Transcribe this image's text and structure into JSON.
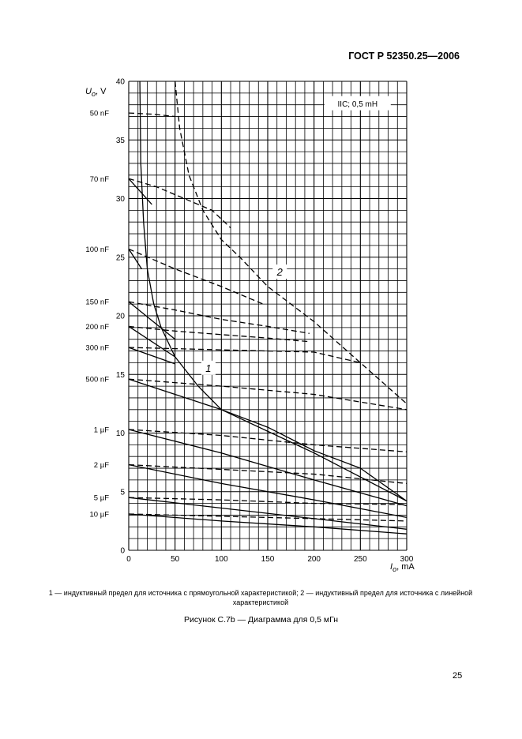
{
  "header": {
    "doc_id": "ГОСТ Р 52350.25—2006"
  },
  "chart_data": {
    "type": "line",
    "annotation": "IIC; 0,5 mH",
    "ylabel": {
      "symbol": "U",
      "sub": "o",
      "unit": ", V"
    },
    "xlabel": {
      "symbol": "I",
      "sub": "o",
      "unit": ", mA"
    },
    "xlim": [
      0,
      300
    ],
    "ylim": [
      0,
      40
    ],
    "x_ticks": [
      "0",
      "50",
      "100",
      "150",
      "200",
      "250",
      "300"
    ],
    "y_ticks": [
      "0",
      "5",
      "10",
      "15",
      "20",
      "25",
      "30",
      "35",
      "40"
    ],
    "capacitance_labels": [
      {
        "text": "50 nF",
        "value": 37.3
      },
      {
        "text": "70 nF",
        "value": 31.7
      },
      {
        "text": "100 nF",
        "value": 25.7
      },
      {
        "text": "150 nF",
        "value": 21.2
      },
      {
        "text": "200 nF",
        "value": 19.1
      },
      {
        "text": "300 nF",
        "value": 17.3
      },
      {
        "text": "500 nF",
        "value": 14.6
      },
      {
        "text": "1 µF",
        "value": 10.3
      },
      {
        "text": "2 µF",
        "value": 7.3
      },
      {
        "text": "5 µF",
        "value": 4.5
      },
      {
        "text": "10 µF",
        "value": 3.1
      }
    ],
    "curve_labels": [
      {
        "text": "1",
        "x": 86,
        "y": 15.5
      },
      {
        "text": "2",
        "x": 163,
        "y": 23.7
      }
    ],
    "series": [
      {
        "name": "1",
        "style": "solid",
        "points": [
          [
            12,
            40
          ],
          [
            13,
            33
          ],
          [
            16,
            28
          ],
          [
            20,
            24
          ],
          [
            27,
            21
          ],
          [
            35,
            19
          ],
          [
            50,
            16.5
          ],
          [
            75,
            14
          ],
          [
            100,
            12
          ],
          [
            150,
            10.5
          ],
          [
            200,
            8.5
          ],
          [
            250,
            7
          ],
          [
            300,
            4.2
          ]
        ]
      },
      {
        "name": "2",
        "style": "dashed",
        "points": [
          [
            50,
            40
          ],
          [
            55,
            36
          ],
          [
            65,
            32
          ],
          [
            80,
            29
          ],
          [
            100,
            26.5
          ],
          [
            120,
            25
          ],
          [
            150,
            22.5
          ],
          [
            200,
            19.5
          ],
          [
            250,
            16
          ],
          [
            300,
            12.5
          ]
        ]
      },
      {
        "name": "50 nF a",
        "style": "dashed",
        "points": [
          [
            0,
            37.3
          ],
          [
            25,
            37.2
          ],
          [
            50,
            37
          ]
        ]
      },
      {
        "name": "70 nF a",
        "style": "dashed",
        "points": [
          [
            0,
            31.7
          ],
          [
            30,
            31
          ],
          [
            60,
            30
          ],
          [
            90,
            29
          ],
          [
            110,
            27.5
          ]
        ]
      },
      {
        "name": "70 nF b",
        "style": "solid",
        "points": [
          [
            0,
            31.7
          ],
          [
            25,
            29.5
          ]
        ]
      },
      {
        "name": "100 nF a",
        "style": "dashed",
        "points": [
          [
            0,
            25.7
          ],
          [
            50,
            24
          ],
          [
            100,
            22.5
          ],
          [
            145,
            21
          ]
        ]
      },
      {
        "name": "100 nF b",
        "style": "solid",
        "points": [
          [
            0,
            25.7
          ],
          [
            14,
            24
          ]
        ]
      },
      {
        "name": "150 nF a",
        "style": "dashed",
        "points": [
          [
            0,
            21.2
          ],
          [
            50,
            20.5
          ],
          [
            100,
            19.7
          ],
          [
            150,
            19.1
          ],
          [
            195,
            18.5
          ]
        ]
      },
      {
        "name": "150 nF b",
        "style": "solid",
        "points": [
          [
            0,
            21.2
          ],
          [
            50,
            18
          ]
        ]
      },
      {
        "name": "200 nF a",
        "style": "dashed",
        "points": [
          [
            0,
            19.1
          ],
          [
            50,
            18.7
          ],
          [
            100,
            18.4
          ],
          [
            150,
            18.1
          ],
          [
            195,
            17.8
          ]
        ]
      },
      {
        "name": "200 nF b",
        "style": "solid",
        "points": [
          [
            0,
            19.1
          ],
          [
            50,
            16.5
          ]
        ]
      },
      {
        "name": "300 nF a",
        "style": "dashed",
        "points": [
          [
            0,
            17.3
          ],
          [
            100,
            17.1
          ],
          [
            200,
            16.9
          ],
          [
            250,
            16
          ]
        ]
      },
      {
        "name": "300 nF b",
        "style": "solid",
        "points": [
          [
            0,
            17.3
          ],
          [
            50,
            15.9
          ]
        ]
      },
      {
        "name": "500 nF a",
        "style": "dashed",
        "points": [
          [
            0,
            14.6
          ],
          [
            100,
            14
          ],
          [
            200,
            13.3
          ],
          [
            300,
            12
          ]
        ]
      },
      {
        "name": "500 nF b",
        "style": "solid",
        "points": [
          [
            0,
            14.6
          ],
          [
            100,
            12
          ],
          [
            200,
            8.3
          ],
          [
            300,
            4.2
          ]
        ]
      },
      {
        "name": "1 µF a",
        "style": "dashed",
        "points": [
          [
            0,
            10.3
          ],
          [
            100,
            9.8
          ],
          [
            200,
            9
          ],
          [
            300,
            8.4
          ]
        ]
      },
      {
        "name": "1 µF b",
        "style": "solid",
        "points": [
          [
            0,
            10.3
          ],
          [
            100,
            8.3
          ],
          [
            200,
            6
          ],
          [
            300,
            3.8
          ]
        ]
      },
      {
        "name": "2 µF a",
        "style": "dashed",
        "points": [
          [
            0,
            7.3
          ],
          [
            100,
            6.9
          ],
          [
            200,
            6.5
          ],
          [
            300,
            5.7
          ]
        ]
      },
      {
        "name": "2 µF b",
        "style": "solid",
        "points": [
          [
            0,
            7.3
          ],
          [
            100,
            5.7
          ],
          [
            200,
            4.3
          ],
          [
            300,
            2.8
          ]
        ]
      },
      {
        "name": "5 µF a",
        "style": "dashed",
        "points": [
          [
            0,
            4.5
          ],
          [
            100,
            4.3
          ],
          [
            200,
            4.0
          ],
          [
            300,
            3.9
          ]
        ]
      },
      {
        "name": "5 µF b",
        "style": "solid",
        "points": [
          [
            0,
            4.5
          ],
          [
            100,
            3.6
          ],
          [
            200,
            2.7
          ],
          [
            300,
            1.8
          ]
        ]
      },
      {
        "name": "10 µF a",
        "style": "dashed",
        "points": [
          [
            0,
            3.1
          ],
          [
            100,
            2.9
          ],
          [
            200,
            2.7
          ],
          [
            300,
            2.5
          ]
        ]
      },
      {
        "name": "10 µF b",
        "style": "solid",
        "points": [
          [
            0,
            3.1
          ],
          [
            100,
            2.5
          ],
          [
            200,
            2.0
          ],
          [
            300,
            1.4
          ]
        ]
      }
    ]
  },
  "legend_note": {
    "line1": "1 — индуктивный предел для источника с прямоугольной характеристикой; 2 — индуктивный предел для источника с линейной",
    "line2": "характеристикой"
  },
  "caption": "Рисунок С.7b — Диаграмма для 0,5 мГн",
  "page_number": "25"
}
